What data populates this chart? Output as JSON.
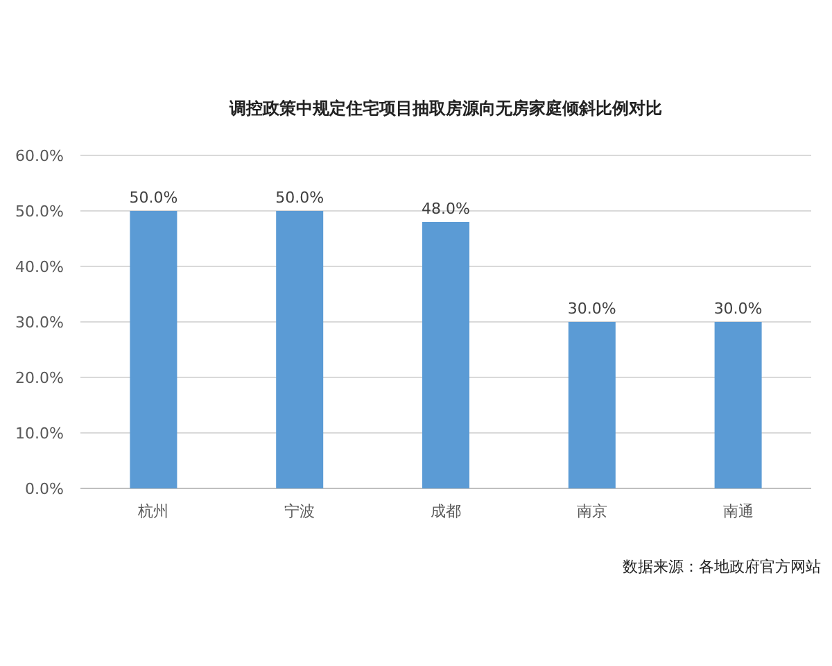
{
  "chart_data": {
    "type": "bar",
    "title": "调控政策中规定住宅项目抽取房源向无房家庭倾斜比例对比",
    "categories": [
      "杭州",
      "宁波",
      "成都",
      "南京",
      "南通"
    ],
    "values": [
      50,
      50,
      48,
      30,
      30
    ],
    "value_labels": [
      "50.0%",
      "50.0%",
      "48.0%",
      "30.0%",
      "30.0%"
    ],
    "color": "#5b9bd5",
    "ylim": [
      0,
      60
    ],
    "yticks": [
      {
        "value": 0,
        "label": "0.0%"
      },
      {
        "value": 10,
        "label": "10.0%"
      },
      {
        "value": 20,
        "label": "20.0%"
      },
      {
        "value": 30,
        "label": "30.0%"
      },
      {
        "value": 40,
        "label": "40.0%"
      },
      {
        "value": 50,
        "label": "50.0%"
      },
      {
        "value": 60,
        "label": "60.0%"
      }
    ],
    "grid": "y",
    "annotations": [
      "数据来源：各地政府官方网站"
    ]
  }
}
